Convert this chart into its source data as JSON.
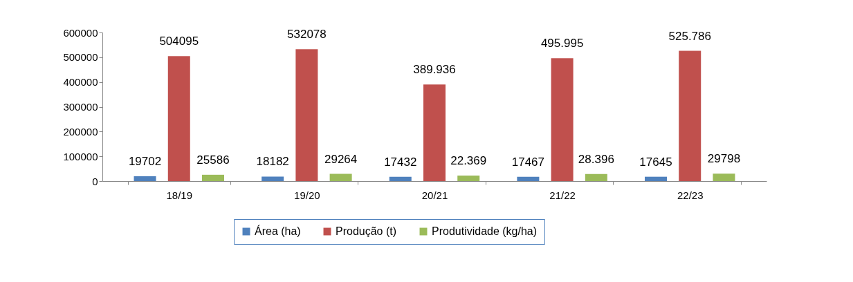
{
  "chart_data": {
    "type": "bar",
    "categories": [
      "18/19",
      "19/20",
      "20/21",
      "21/22",
      "22/23"
    ],
    "series": [
      {
        "name": "Área (ha)",
        "color": "#4f81bd",
        "values": [
          19702,
          18182,
          17432,
          17467,
          17645
        ],
        "value_labels": [
          "19702",
          "18182",
          "17432",
          "17467",
          "17645"
        ]
      },
      {
        "name": "Produção (t)",
        "color": "#c0504d",
        "values": [
          504095,
          532078,
          389936,
          495995,
          525786
        ],
        "value_labels": [
          "504095",
          "532078",
          "389.936",
          "495.995",
          "525.786"
        ]
      },
      {
        "name": "Produtividade (kg/ha)",
        "color": "#9bbb59",
        "values": [
          25586,
          29264,
          22369,
          28396,
          29798
        ],
        "value_labels": [
          "25586",
          "29264",
          "22.369",
          "28.396",
          "29798"
        ]
      }
    ],
    "ylim": [
      0,
      600000
    ],
    "yticks": [
      0,
      100000,
      200000,
      300000,
      400000,
      500000,
      600000
    ],
    "grid": false,
    "legend": "bottom"
  }
}
